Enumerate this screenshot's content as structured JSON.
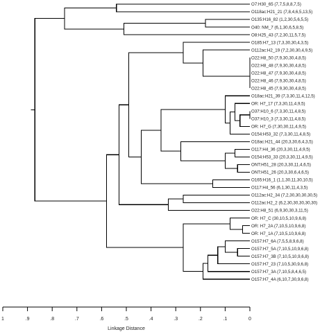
{
  "chart_data": {
    "type": "dendrogram",
    "xlabel": "Linkage Distance",
    "xlim": [
      1,
      0
    ],
    "ticks": [
      1,
      0.9,
      0.8,
      0.7,
      0.6,
      0.5,
      0.4,
      0.3,
      0.2,
      0.1,
      0
    ],
    "tick_labels": [
      "1",
      ".9",
      ".8",
      ".7",
      ".6",
      ".5",
      ".4",
      ".3",
      ".2",
      ".1",
      "0"
    ],
    "leaves": [
      "O7:H30_65 (7,7,5,8,8,7,5)",
      "O118ac:H21_21 (7,8,4,6,5,13,5)",
      "O135:H16_82 (1,2,30,5,6,5,5)",
      "O40: NM_7 (6,1,30,6,5,8,5)",
      "O8:H25_43 (7,2,30,11,5,7,5)",
      "O185:H7_13 (7,3,30,30,4,3,5)",
      "O112ac:H2_19 (7,2,30,30,4,9,5)",
      "O22:H8_50 (7,9,30,30,4,8,5)",
      "O22:H8_48 (7,9,30,30,4,8,5)",
      "O22:H8_47 (7,9,30,30,4,8,5)",
      "O22:H8_46 (7,9,30,30,4,8,5)",
      "O22:H8_45 (7,9,30,30,4,8,5)",
      "O18ac:H21_39 (7,3,30,11,4,12,5)",
      "OR: H7_17 (7,3,30,11,4,9,5)",
      "O37:H10_6 (7,3,30,11,4,8,5)",
      "O37:H10_3 (7,3,30,11,4,8,5)",
      "OR: H7_G (7,30,30,11,4,9,5)",
      "O154:H53_32 (7,3,30,11,4,8,5)",
      "O18ac:H21_44 (20,3,30,6,4,3,5)",
      "O117:H4_36 (20,3,30,11,4,9,5)",
      "O154:H53_33 (20,3,30,11,4,9,5)",
      "ONT:H51_28 (20,3,30,11,4,6,5)",
      "ONT:H51_26 (20,3,30,6,4,6,5)",
      "O165:H16_1 (1,1,30,11,30,10,5)",
      "O117:H4_56 (6,1,30,11,4,3,5)",
      "O112ac:H2_34 (7,2,30,30,30,30,5)",
      "O112ac:H2_2 (6,2,30,30,30,30,30)",
      "O22:H8_51 (6,9,30,30,3,11,5)",
      "OR: H7_C (30,10,5,10,9,6,8)",
      "OR: H7_2A (7,10,5,10,9,6,8)",
      "OR: H7_1A (7,10,5,10,9,6,8)",
      "O157:H7_6A (7,5,5,8,9,6,8)",
      "O157:H7_5A (7,10,5,10,9,6,8)",
      "O157:H7_3B (7,10,5,10,9,6,8)",
      "O157:H7_23 (7,10,5,30,9,6,8)",
      "O157:H7_3A (7,10,5,8,4,6,5)",
      "O157:H7_4A (6,10,7,30,9,6,8)"
    ],
    "merges": [
      {
        "children": [
          0,
          1
        ],
        "height": 0.54
      },
      {
        "children": [
          2,
          3
        ],
        "height": 0.18
      },
      {
        "children": [
          "m1",
          4
        ],
        "height": 0.51
      },
      {
        "children": [
          "m0",
          "m2"
        ],
        "height": 0.75
      },
      {
        "children": [
          9,
          10
        ],
        "height": 0.0
      },
      {
        "children": [
          8,
          "m4"
        ],
        "height": 0.0
      },
      {
        "children": [
          7,
          "m5"
        ],
        "height": 0.0
      },
      {
        "children": [
          "m6",
          11
        ],
        "height": 0.0
      },
      {
        "children": [
          6,
          "m7"
        ],
        "height": 0.19
      },
      {
        "children": [
          5,
          "m8"
        ],
        "height": 0.27
      },
      {
        "children": [
          14,
          15
        ],
        "height": 0.0
      },
      {
        "children": [
          "m10",
          16
        ],
        "height": 0.04
      },
      {
        "children": [
          13,
          "m11"
        ],
        "height": 0.06
      },
      {
        "children": [
          "m12",
          17
        ],
        "height": 0.08
      },
      {
        "children": [
          12,
          "m13"
        ],
        "height": 0.1
      },
      {
        "children": [
          19,
          20
        ],
        "height": 0.06
      },
      {
        "children": [
          21,
          22
        ],
        "height": 0.05
      },
      {
        "children": [
          "m15",
          "m16"
        ],
        "height": 0.1
      },
      {
        "children": [
          18,
          "m17"
        ],
        "height": 0.28
      },
      {
        "children": [
          "m14",
          "m18"
        ],
        "height": 0.36
      },
      {
        "children": [
          23,
          24
        ],
        "height": 0.15
      },
      {
        "children": [
          "m19",
          "m20"
        ],
        "height": 0.44
      },
      {
        "children": [
          "m9",
          "m21"
        ],
        "height": 0.49
      },
      {
        "children": [
          25,
          26
        ],
        "height": 0.27
      },
      {
        "children": [
          "m23",
          27
        ],
        "height": 0.33
      },
      {
        "children": [
          "m22",
          "m24"
        ],
        "height": 0.53
      },
      {
        "children": [
          29,
          30
        ],
        "height": 0.03
      },
      {
        "children": [
          28,
          "m26"
        ],
        "height": 0.08
      },
      {
        "children": [
          32,
          33
        ],
        "height": 0.05
      },
      {
        "children": [
          31,
          "m28"
        ],
        "height": 0.1
      },
      {
        "children": [
          "m29",
          34
        ],
        "height": 0.13
      },
      {
        "children": [
          "m30",
          35
        ],
        "height": 0.17
      },
      {
        "children": [
          "m31",
          36
        ],
        "height": 0.19
      },
      {
        "children": [
          "m27",
          "m32"
        ],
        "height": 0.27
      },
      {
        "children": [
          "m25",
          "m33"
        ],
        "height": 0.58
      },
      {
        "children": [
          "m3",
          "m34"
        ],
        "height": 0.87
      }
    ]
  }
}
